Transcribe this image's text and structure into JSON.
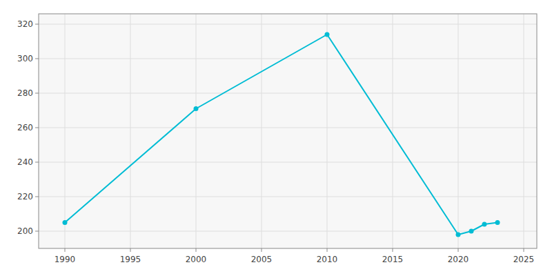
{
  "chart_data": {
    "type": "line",
    "x": [
      1990,
      2000,
      2010,
      2020,
      2021,
      2022,
      2023
    ],
    "values": [
      205,
      271,
      314,
      198,
      200,
      204,
      205
    ],
    "color": "#00BCD4",
    "marker": "circle",
    "xlim": [
      1988,
      2026
    ],
    "ylim": [
      190,
      326
    ],
    "xticks": [
      1990,
      1995,
      2000,
      2005,
      2010,
      2015,
      2020,
      2025
    ],
    "yticks": [
      200,
      220,
      240,
      260,
      280,
      300,
      320
    ],
    "grid": true
  }
}
